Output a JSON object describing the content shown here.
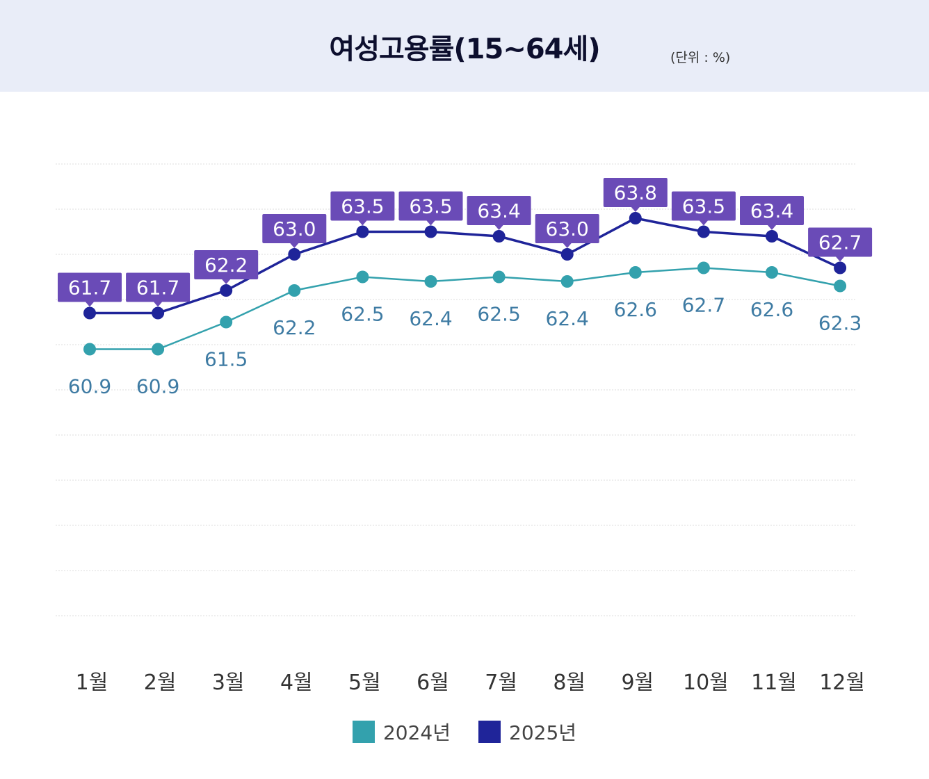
{
  "chart_data": {
    "type": "line",
    "title": "여성고용률(15~64세)",
    "unit": "(단위 : %)",
    "categories": [
      "1월",
      "2월",
      "3월",
      "4월",
      "5월",
      "6월",
      "7월",
      "8월",
      "9월",
      "10월",
      "11월",
      "12월"
    ],
    "series": [
      {
        "name": "2024년",
        "color": "#33a1ad",
        "label_color": "#3e7ba3",
        "values": [
          60.9,
          60.9,
          61.5,
          62.2,
          62.5,
          62.4,
          62.5,
          62.4,
          62.6,
          62.7,
          62.6,
          62.3
        ]
      },
      {
        "name": "2025년",
        "color": "#1f2499",
        "label_color": "#6a4bb7",
        "values": [
          61.7,
          61.7,
          62.2,
          63.0,
          63.5,
          63.5,
          63.4,
          63.0,
          63.8,
          63.5,
          63.4,
          62.7
        ]
      }
    ],
    "ylim": [
      55,
      65
    ],
    "grid": true,
    "legend": "bottom"
  }
}
